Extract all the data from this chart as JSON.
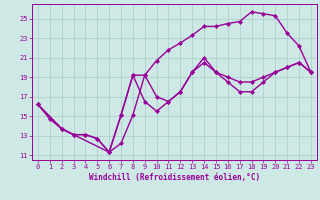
{
  "xlabel": "Windchill (Refroidissement éolien,°C)",
  "xlim": [
    -0.5,
    23.5
  ],
  "ylim": [
    10.5,
    26.5
  ],
  "xticks": [
    0,
    1,
    2,
    3,
    4,
    5,
    6,
    7,
    8,
    9,
    10,
    11,
    12,
    13,
    14,
    15,
    16,
    17,
    18,
    19,
    20,
    21,
    22,
    23
  ],
  "yticks": [
    11,
    13,
    15,
    17,
    19,
    21,
    23,
    25
  ],
  "bg_color": "#cde8e5",
  "grid_color": "#a8ceca",
  "line_color": "#990099",
  "marker": "D",
  "marker_size": 2,
  "line_width": 1.0,
  "curve1_x": [
    0,
    1,
    2,
    3,
    4,
    5,
    6,
    7,
    8,
    9,
    10,
    11,
    12,
    13,
    14,
    15,
    16,
    17,
    18,
    19,
    20,
    21,
    22,
    23
  ],
  "curve1_y": [
    16.2,
    14.7,
    13.7,
    13.1,
    13.1,
    12.7,
    11.3,
    12.2,
    15.1,
    19.2,
    20.7,
    21.8,
    22.5,
    23.3,
    24.2,
    24.2,
    24.5,
    24.7,
    25.7,
    25.5,
    25.3,
    23.5,
    22.2,
    19.5
  ],
  "curve2_x": [
    0,
    2,
    3,
    4,
    5,
    6,
    7,
    8,
    9,
    10,
    11,
    12,
    13,
    14,
    15,
    16,
    17,
    18,
    19,
    20,
    21,
    22,
    23
  ],
  "curve2_y": [
    16.2,
    13.7,
    13.1,
    13.1,
    12.7,
    11.3,
    15.1,
    19.2,
    19.2,
    17.0,
    16.5,
    17.5,
    19.5,
    20.5,
    19.5,
    18.5,
    17.5,
    17.5,
    18.5,
    19.5,
    20.0,
    20.5,
    19.5
  ],
  "curve3_x": [
    0,
    2,
    3,
    6,
    7,
    8,
    9,
    10,
    11,
    12,
    13,
    14,
    15,
    16,
    17,
    18,
    19,
    20,
    21,
    22,
    23
  ],
  "curve3_y": [
    16.2,
    13.7,
    13.1,
    11.3,
    15.1,
    19.2,
    16.5,
    15.5,
    16.5,
    17.5,
    19.5,
    21.0,
    19.5,
    19.0,
    18.5,
    18.5,
    19.0,
    19.5,
    20.0,
    20.5,
    19.5
  ]
}
